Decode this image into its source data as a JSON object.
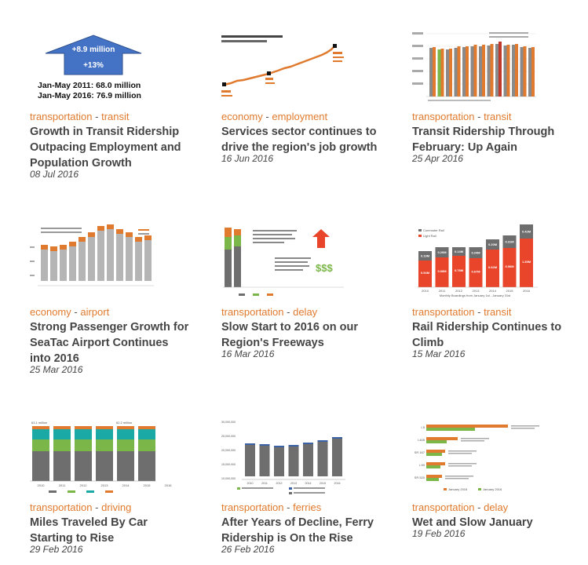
{
  "colors": {
    "accent": "#e07a2e",
    "gray": "#6e6e6e",
    "green": "#7ab648",
    "teal": "#1aa9a5",
    "blue": "#3b62a6"
  },
  "posts": [
    {
      "cat1": "transportation",
      "cat2": "transit",
      "sep": "-",
      "title": "Growth in Transit Ridership Outpacing Employment and Population Growth",
      "date": "08 Jul 2016",
      "thumb": {
        "arrow_top": "+8.9 million",
        "arrow_mid": "+13%",
        "line1": "Jan-May 2011: 68.0 million",
        "line2": "Jan-May 2016: 76.9 million"
      }
    },
    {
      "cat1": "economy",
      "cat2": "employment",
      "sep": "-",
      "title": "Services sector continues to drive the region's job growth",
      "date": "16 Jun 2016"
    },
    {
      "cat1": "transportation",
      "cat2": "transit",
      "sep": "-",
      "title": "Transit Ridership Through February: Up Again",
      "date": "25 Apr 2016"
    },
    {
      "cat1": "economy",
      "cat2": "airport",
      "sep": "-",
      "title": "Strong Passenger Growth for SeaTac Airport Continues into 2016",
      "date": "25 Mar 2016"
    },
    {
      "cat1": "transportation",
      "cat2": "delay",
      "sep": "-",
      "title": "Slow Start to 2016 on our Region's Freeways",
      "date": "16 Mar 2016",
      "thumb": {
        "dollars": "$$$"
      }
    },
    {
      "cat1": "transportation",
      "cat2": "transit",
      "sep": "-",
      "title": "Rail Ridership Continues to Climb",
      "date": "15 Mar 2016",
      "thumb": {
        "legend1": "Commuter Rail",
        "legend2": "Light Rail",
        "years": [
          "2010",
          "2011",
          "2012",
          "2013",
          "2014",
          "2015",
          "2016"
        ],
        "top_vals": [
          "0.19M",
          "0.20M",
          "0.14M",
          "0.24M",
          "0.20M",
          "0.31M",
          "0.42M"
        ],
        "bot_vals": [
          "0.54M",
          "0.68M",
          "0.78M",
          "0.67M",
          "0.92M",
          "0.96M",
          "1.39M"
        ],
        "caption": "Monthly Boardings from January 1st - January 31st"
      }
    },
    {
      "cat1": "transportation",
      "cat2": "driving",
      "sep": "-",
      "title": "Miles Traveled By Car Starting to Rise",
      "date": "29 Feb 2016",
      "thumb": {
        "top_left": "63.1 million",
        "top_right": "62.2 million",
        "years": [
          "2010",
          "2011",
          "2012",
          "2013",
          "2014",
          "2015",
          "2016"
        ]
      }
    },
    {
      "cat1": "transportation",
      "cat2": "ferries",
      "sep": "-",
      "title": "After Years of Decline, Ferry Ridership is On the Rise",
      "date": "26 Feb 2016",
      "thumb": {
        "yticks": [
          "30,000,000",
          "25,000,000",
          "20,000,000",
          "15,000,000",
          "10,000,000"
        ],
        "years": [
          "2010",
          "2011",
          "2012",
          "2013",
          "2014",
          "2015",
          "2016"
        ]
      }
    },
    {
      "cat1": "transportation",
      "cat2": "delay",
      "sep": "-",
      "title": "Wet and Slow January",
      "date": "19 Feb 2016",
      "thumb": {
        "rows": [
          "I-5",
          "I-405",
          "SR 167",
          "I-90",
          "SR 520"
        ],
        "legend1": "January 2015",
        "legend2": "January 2016"
      }
    }
  ]
}
